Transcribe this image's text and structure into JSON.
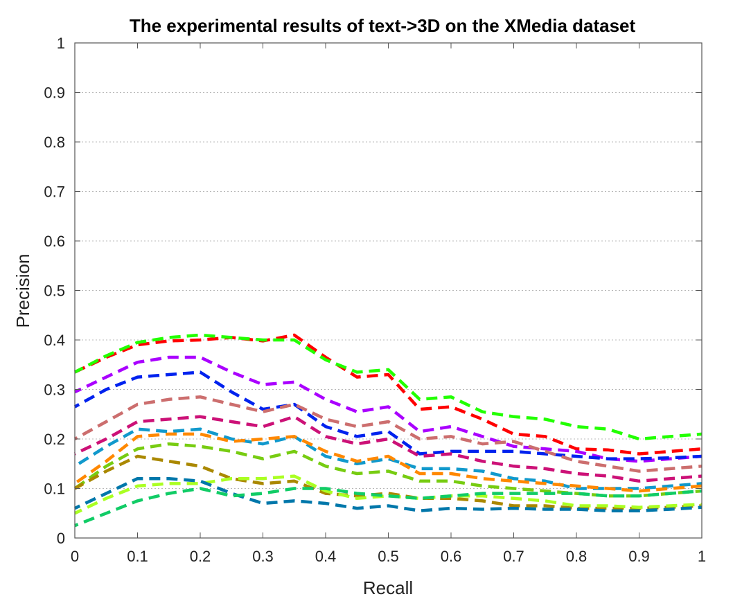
{
  "chart_data": {
    "type": "line",
    "title": "The experimental results of text->3D on the XMedia dataset",
    "xlabel": "Recall",
    "ylabel": "Precision",
    "xlim": [
      0,
      1
    ],
    "ylim": [
      0,
      1
    ],
    "grid": "y-dotted",
    "x_ticks": [
      "0",
      "0.1",
      "0.2",
      "0.3",
      "0.4",
      "0.5",
      "0.6",
      "0.7",
      "0.8",
      "0.9",
      "1"
    ],
    "y_ticks": [
      "0",
      "0.1",
      "0.2",
      "0.3",
      "0.4",
      "0.5",
      "0.6",
      "0.7",
      "0.8",
      "0.9",
      "1"
    ],
    "x": [
      0,
      0.05,
      0.1,
      0.15,
      0.2,
      0.25,
      0.3,
      0.35,
      0.4,
      0.45,
      0.5,
      0.55,
      0.6,
      0.65,
      0.7,
      0.75,
      0.8,
      0.85,
      0.9,
      0.95,
      1.0
    ],
    "series": [
      {
        "color": "#ff0000",
        "values": [
          0.335,
          0.365,
          0.39,
          0.398,
          0.4,
          0.405,
          0.398,
          0.41,
          0.365,
          0.325,
          0.33,
          0.26,
          0.265,
          0.24,
          0.21,
          0.205,
          0.18,
          0.178,
          0.17,
          0.175,
          0.18
        ]
      },
      {
        "color": "#22ff00",
        "values": [
          0.335,
          0.368,
          0.395,
          0.405,
          0.41,
          0.405,
          0.4,
          0.4,
          0.36,
          0.335,
          0.34,
          0.28,
          0.285,
          0.255,
          0.245,
          0.24,
          0.225,
          0.22,
          0.2,
          0.205,
          0.21
        ]
      },
      {
        "color": "#aa00ff",
        "values": [
          0.295,
          0.325,
          0.355,
          0.365,
          0.365,
          0.335,
          0.31,
          0.315,
          0.28,
          0.255,
          0.265,
          0.215,
          0.225,
          0.205,
          0.185,
          0.18,
          0.175,
          0.16,
          0.155,
          0.16,
          0.165
        ]
      },
      {
        "color": "#0022ee",
        "values": [
          0.265,
          0.3,
          0.325,
          0.33,
          0.335,
          0.295,
          0.26,
          0.27,
          0.225,
          0.205,
          0.215,
          0.17,
          0.175,
          0.175,
          0.175,
          0.17,
          0.165,
          0.16,
          0.16,
          0.162,
          0.165
        ]
      },
      {
        "color": "#cc6e6e",
        "values": [
          0.2,
          0.235,
          0.27,
          0.28,
          0.285,
          0.27,
          0.255,
          0.27,
          0.24,
          0.225,
          0.235,
          0.2,
          0.205,
          0.19,
          0.195,
          0.175,
          0.155,
          0.145,
          0.135,
          0.14,
          0.145
        ]
      },
      {
        "color": "#cc1177",
        "values": [
          0.17,
          0.2,
          0.235,
          0.24,
          0.245,
          0.235,
          0.225,
          0.245,
          0.205,
          0.19,
          0.2,
          0.165,
          0.17,
          0.155,
          0.145,
          0.14,
          0.13,
          0.125,
          0.115,
          0.12,
          0.125
        ]
      },
      {
        "color": "#1199cc",
        "values": [
          0.145,
          0.185,
          0.22,
          0.215,
          0.22,
          0.2,
          0.19,
          0.205,
          0.165,
          0.15,
          0.16,
          0.14,
          0.14,
          0.135,
          0.12,
          0.115,
          0.1,
          0.1,
          0.1,
          0.105,
          0.11
        ]
      },
      {
        "color": "#ff8800",
        "values": [
          0.11,
          0.155,
          0.205,
          0.21,
          0.21,
          0.195,
          0.2,
          0.205,
          0.175,
          0.155,
          0.165,
          0.13,
          0.13,
          0.12,
          0.115,
          0.11,
          0.105,
          0.1,
          0.095,
          0.1,
          0.105
        ]
      },
      {
        "color": "#77cc11",
        "values": [
          0.1,
          0.145,
          0.18,
          0.19,
          0.185,
          0.175,
          0.16,
          0.175,
          0.145,
          0.13,
          0.135,
          0.115,
          0.115,
          0.105,
          0.1,
          0.095,
          0.09,
          0.085,
          0.085,
          0.09,
          0.095
        ]
      },
      {
        "color": "#aa8800",
        "values": [
          0.1,
          0.135,
          0.165,
          0.155,
          0.145,
          0.12,
          0.11,
          0.115,
          0.09,
          0.085,
          0.09,
          0.08,
          0.08,
          0.075,
          0.065,
          0.065,
          0.06,
          0.06,
          0.06,
          0.062,
          0.065
        ]
      },
      {
        "color": "#aaff22",
        "values": [
          0.05,
          0.08,
          0.105,
          0.11,
          0.11,
          0.12,
          0.12,
          0.125,
          0.095,
          0.08,
          0.085,
          0.08,
          0.085,
          0.085,
          0.08,
          0.075,
          0.065,
          0.065,
          0.062,
          0.065,
          0.068
        ]
      },
      {
        "color": "#0077aa",
        "values": [
          0.06,
          0.09,
          0.12,
          0.12,
          0.115,
          0.09,
          0.07,
          0.075,
          0.07,
          0.06,
          0.065,
          0.055,
          0.06,
          0.058,
          0.06,
          0.058,
          0.058,
          0.055,
          0.055,
          0.058,
          0.062
        ]
      },
      {
        "color": "#11cc66",
        "values": [
          0.025,
          0.05,
          0.075,
          0.09,
          0.1,
          0.085,
          0.09,
          0.1,
          0.1,
          0.09,
          0.085,
          0.08,
          0.085,
          0.09,
          0.09,
          0.09,
          0.09,
          0.085,
          0.085,
          0.09,
          0.095
        ]
      }
    ]
  }
}
